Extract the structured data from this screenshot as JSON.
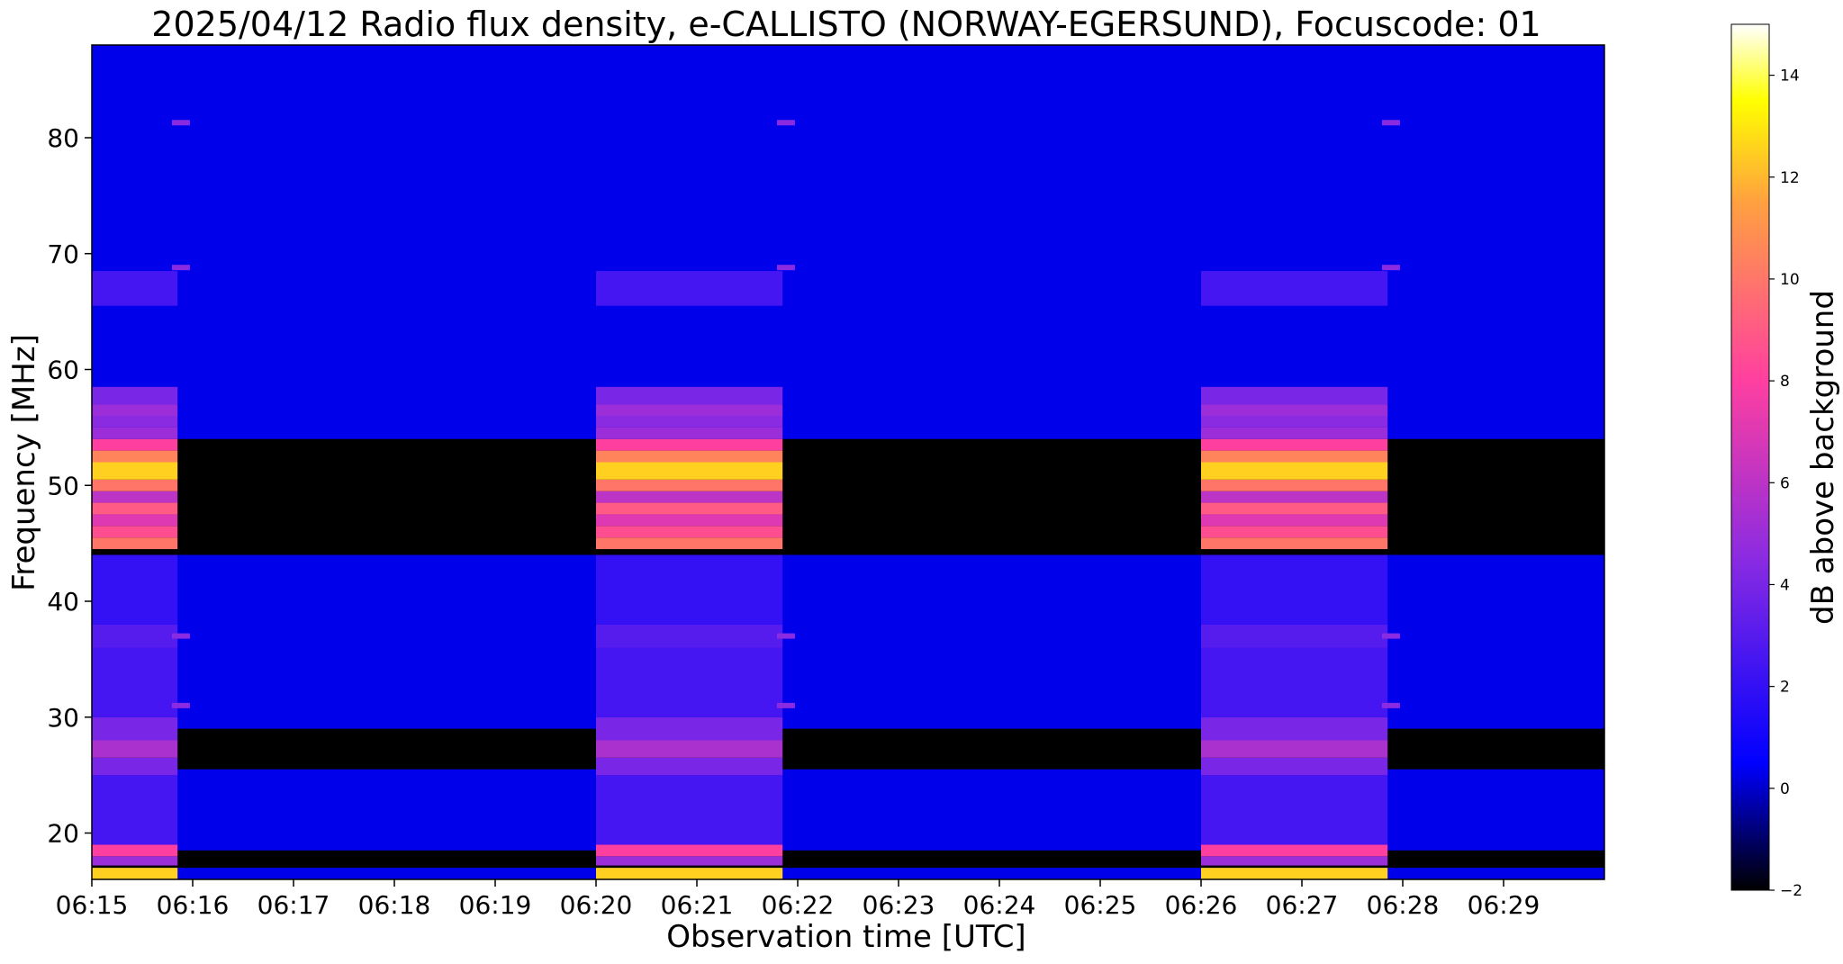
{
  "chart_data": {
    "type": "heatmap",
    "title": "2025/04/12  Radio flux density, e-CALLISTO (NORWAY-EGERSUND), Focuscode: 01",
    "xlabel": "Observation time [UTC]",
    "ylabel": "Frequency [MHz]",
    "colorbar_label": "dB above background",
    "xlim": [
      "06:15",
      "06:30"
    ],
    "ylim": [
      16,
      88
    ],
    "clim": [
      -2,
      15
    ],
    "x_ticks": [
      "06:15",
      "06:16",
      "06:17",
      "06:18",
      "06:19",
      "06:20",
      "06:21",
      "06:22",
      "06:23",
      "06:24",
      "06:25",
      "06:26",
      "06:27",
      "06:28",
      "06:29"
    ],
    "y_ticks": [
      20,
      30,
      40,
      50,
      60,
      70,
      80
    ],
    "colorbar_ticks": [
      -2,
      0,
      2,
      4,
      6,
      8,
      10,
      12,
      14
    ],
    "colormap": "gnuplot2",
    "colormap_stops": [
      {
        "value": -2,
        "color": "#000000"
      },
      {
        "value": 0.5,
        "color": "#0000ff"
      },
      {
        "value": 4.5,
        "color": "#8a2be2"
      },
      {
        "value": 8,
        "color": "#ff3fa0"
      },
      {
        "value": 11.5,
        "color": "#ffa040"
      },
      {
        "value": 13.5,
        "color": "#ffff00"
      },
      {
        "value": 15,
        "color": "#ffffff"
      }
    ],
    "background_level_db": 0.3,
    "quiet_bands_mhz": [
      [
        44,
        54
      ],
      [
        25.5,
        29
      ],
      [
        17,
        18.5
      ]
    ],
    "calibration_intervals": [
      {
        "start": "06:15:00",
        "end": "06:15:51"
      },
      {
        "start": "06:20:00",
        "end": "06:21:51"
      },
      {
        "start": "06:26:00",
        "end": "06:27:51"
      }
    ],
    "calibration_bands": [
      {
        "fmin": 16,
        "fmax": 17,
        "db": 12.5
      },
      {
        "fmin": 17.2,
        "fmax": 18,
        "db": 5
      },
      {
        "fmin": 18,
        "fmax": 19,
        "db": 8
      },
      {
        "fmin": 19,
        "fmax": 25,
        "db": 2.5
      },
      {
        "fmin": 25,
        "fmax": 26.5,
        "db": 4
      },
      {
        "fmin": 26.5,
        "fmax": 28,
        "db": 5.5
      },
      {
        "fmin": 28,
        "fmax": 30,
        "db": 4
      },
      {
        "fmin": 30,
        "fmax": 36,
        "db": 2.5
      },
      {
        "fmin": 36,
        "fmax": 38,
        "db": 3
      },
      {
        "fmin": 38,
        "fmax": 44,
        "db": 2
      },
      {
        "fmin": 44.5,
        "fmax": 45.5,
        "db": 10
      },
      {
        "fmin": 45.5,
        "fmax": 46.5,
        "db": 8.5
      },
      {
        "fmin": 46.5,
        "fmax": 47.5,
        "db": 7
      },
      {
        "fmin": 47.5,
        "fmax": 48.5,
        "db": 9
      },
      {
        "fmin": 48.5,
        "fmax": 49.5,
        "db": 6
      },
      {
        "fmin": 49.5,
        "fmax": 50.5,
        "db": 10
      },
      {
        "fmin": 50.5,
        "fmax": 52,
        "db": 12.5
      },
      {
        "fmin": 52,
        "fmax": 53,
        "db": 10.5
      },
      {
        "fmin": 53,
        "fmax": 54,
        "db": 8
      },
      {
        "fmin": 54,
        "fmax": 55,
        "db": 5
      },
      {
        "fmin": 55,
        "fmax": 56,
        "db": 4.5
      },
      {
        "fmin": 56,
        "fmax": 57,
        "db": 5
      },
      {
        "fmin": 57,
        "fmax": 58.5,
        "db": 4
      },
      {
        "fmin": 65.5,
        "fmax": 68.5,
        "db": 2.5
      }
    ],
    "marker_frequencies_mhz": [
      81.3,
      68.8,
      37,
      31
    ],
    "marker_times": [
      "06:15:53",
      "06:21:53",
      "06:27:53"
    ]
  }
}
